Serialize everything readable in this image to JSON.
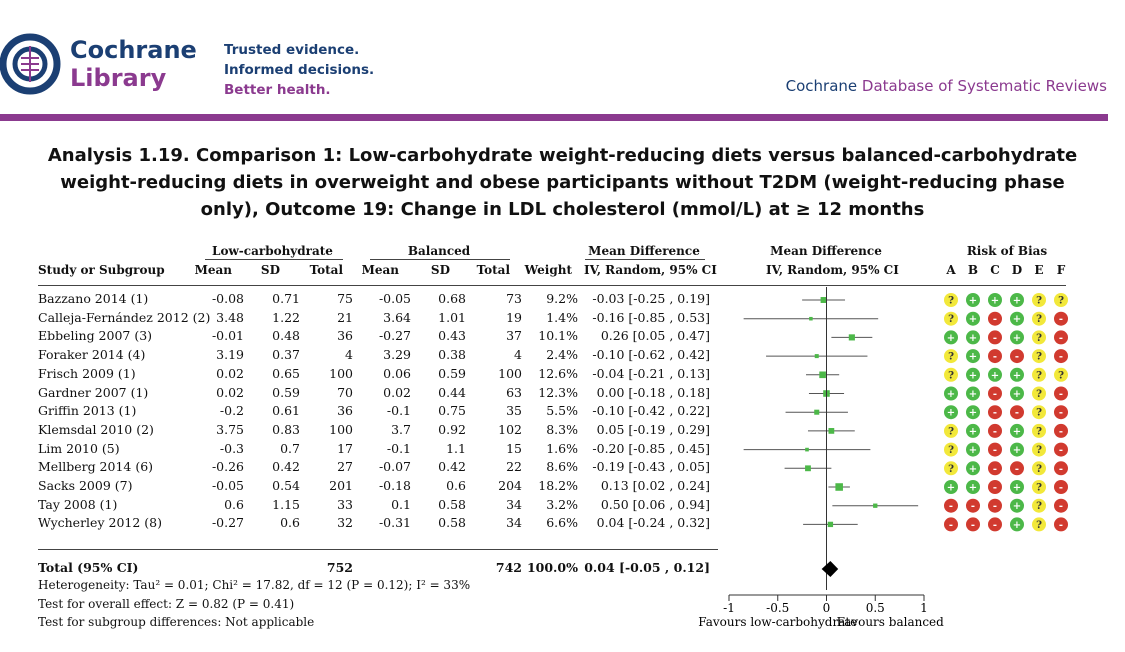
{
  "header": {
    "brand_line1": "Cochrane",
    "brand_line2": "Library",
    "tagline": [
      "Trusted evidence.",
      "Informed decisions.",
      "Better health."
    ],
    "db_title_prefix": "Cochrane",
    "db_title_rest": "Database of Systematic Reviews",
    "colors": {
      "navy": "#1b3f73",
      "purple": "#8b3a8f"
    }
  },
  "analysis_title": "Analysis 1.19.   Comparison 1: Low-carbohydrate weight-reducing diets versus balanced-carbohydrate weight-reducing diets in overweight and obese participants without T2DM (weight-reducing phase only), Outcome 19: Change in LDL cholesterol (mmol/L) at ≥ 12 months",
  "table": {
    "group_headers": {
      "low_carb": "Low-carbohydrate",
      "balanced": "Balanced",
      "md": "Mean Difference",
      "md_plot": "Mean Difference",
      "rob": "Risk of Bias"
    },
    "col_headers": {
      "study": "Study or Subgroup",
      "mean1": "Mean",
      "sd1": "SD",
      "total1": "Total",
      "mean2": "Mean",
      "sd2": "SD",
      "total2": "Total",
      "weight": "Weight",
      "md_ci": "IV, Random, 95% CI",
      "plot_ci": "IV, Random, 95% CI",
      "rob_letters": [
        "A",
        "B",
        "C",
        "D",
        "E",
        "F"
      ]
    },
    "footer": {
      "total_label": "Total (95% CI)",
      "total1": "752",
      "total2": "742",
      "weight": "100.0%",
      "md_ci": "0.04 [-0.05 , 0.12]",
      "heterogeneity": "Heterogeneity: Tau² = 0.01; Chi² = 17.82, df = 12 (P = 0.12); I² = 33%",
      "overall_effect": "Test for overall effect: Z = 0.82 (P = 0.41)",
      "subgroup_diff": "Test for subgroup differences: Not applicable"
    }
  },
  "risk_colors": {
    "low": "#4cb848",
    "unclear": "#f2e83a",
    "high": "#d13a2f"
  },
  "chart_data": {
    "type": "forest",
    "title": "Mean Difference IV, Random, 95% CI",
    "xlim": [
      -1,
      1
    ],
    "ticks": [
      -1,
      -0.5,
      0,
      0.5,
      1
    ],
    "tick_labels": [
      "-1",
      "-0.5",
      "0",
      "0.5",
      "1"
    ],
    "xlabel_left": "Favours low-carbohydrate",
    "xlabel_right": "Favours balanced",
    "studies": [
      {
        "study": "Bazzano 2014 (1)",
        "m1": "-0.08",
        "sd1": "0.71",
        "n1": "75",
        "m2": "-0.05",
        "sd2": "0.68",
        "n2": "73",
        "weight": "9.2%",
        "ci_text": "-0.03 [-0.25 , 0.19]",
        "md": -0.03,
        "lo": -0.25,
        "hi": 0.19,
        "w": 9.2,
        "rob": [
          "?",
          "+",
          "+",
          "+",
          "?",
          "?"
        ]
      },
      {
        "study": "Calleja-Fernández 2012 (2)",
        "m1": "3.48",
        "sd1": "1.22",
        "n1": "21",
        "m2": "3.64",
        "sd2": "1.01",
        "n2": "19",
        "weight": "1.4%",
        "ci_text": "-0.16 [-0.85 , 0.53]",
        "md": -0.16,
        "lo": -0.85,
        "hi": 0.53,
        "w": 1.4,
        "rob": [
          "?",
          "+",
          "-",
          "+",
          "?",
          "-"
        ]
      },
      {
        "study": "Ebbeling 2007 (3)",
        "m1": "-0.01",
        "sd1": "0.48",
        "n1": "36",
        "m2": "-0.27",
        "sd2": "0.43",
        "n2": "37",
        "weight": "10.1%",
        "ci_text": "0.26 [0.05 , 0.47]",
        "md": 0.26,
        "lo": 0.05,
        "hi": 0.47,
        "w": 10.1,
        "rob": [
          "+",
          "+",
          "-",
          "+",
          "?",
          "-"
        ]
      },
      {
        "study": "Foraker 2014 (4)",
        "m1": "3.19",
        "sd1": "0.37",
        "n1": "4",
        "m2": "3.29",
        "sd2": "0.38",
        "n2": "4",
        "weight": "2.4%",
        "ci_text": "-0.10 [-0.62 , 0.42]",
        "md": -0.1,
        "lo": -0.62,
        "hi": 0.42,
        "w": 2.4,
        "rob": [
          "?",
          "+",
          "-",
          "-",
          "?",
          "-"
        ]
      },
      {
        "study": "Frisch 2009 (1)",
        "m1": "0.02",
        "sd1": "0.65",
        "n1": "100",
        "m2": "0.06",
        "sd2": "0.59",
        "n2": "100",
        "weight": "12.6%",
        "ci_text": "-0.04 [-0.21 , 0.13]",
        "md": -0.04,
        "lo": -0.21,
        "hi": 0.13,
        "w": 12.6,
        "rob": [
          "?",
          "+",
          "+",
          "+",
          "?",
          "?"
        ]
      },
      {
        "study": "Gardner 2007 (1)",
        "m1": "0.02",
        "sd1": "0.59",
        "n1": "70",
        "m2": "0.02",
        "sd2": "0.44",
        "n2": "63",
        "weight": "12.3%",
        "ci_text": "0.00 [-0.18 , 0.18]",
        "md": 0.0,
        "lo": -0.18,
        "hi": 0.18,
        "w": 12.3,
        "rob": [
          "+",
          "+",
          "-",
          "+",
          "?",
          "-"
        ]
      },
      {
        "study": "Griffin 2013 (1)",
        "m1": "-0.2",
        "sd1": "0.61",
        "n1": "36",
        "m2": "-0.1",
        "sd2": "0.75",
        "n2": "35",
        "weight": "5.5%",
        "ci_text": "-0.10 [-0.42 , 0.22]",
        "md": -0.1,
        "lo": -0.42,
        "hi": 0.22,
        "w": 5.5,
        "rob": [
          "+",
          "+",
          "-",
          "-",
          "?",
          "-"
        ]
      },
      {
        "study": "Klemsdal 2010 (2)",
        "m1": "3.75",
        "sd1": "0.83",
        "n1": "100",
        "m2": "3.7",
        "sd2": "0.92",
        "n2": "102",
        "weight": "8.3%",
        "ci_text": "0.05 [-0.19 , 0.29]",
        "md": 0.05,
        "lo": -0.19,
        "hi": 0.29,
        "w": 8.3,
        "rob": [
          "?",
          "+",
          "-",
          "+",
          "?",
          "-"
        ]
      },
      {
        "study": "Lim 2010 (5)",
        "m1": "-0.3",
        "sd1": "0.7",
        "n1": "17",
        "m2": "-0.1",
        "sd2": "1.1",
        "n2": "15",
        "weight": "1.6%",
        "ci_text": "-0.20 [-0.85 , 0.45]",
        "md": -0.2,
        "lo": -0.85,
        "hi": 0.45,
        "w": 1.6,
        "rob": [
          "?",
          "+",
          "-",
          "+",
          "?",
          "-"
        ]
      },
      {
        "study": "Mellberg 2014 (6)",
        "m1": "-0.26",
        "sd1": "0.42",
        "n1": "27",
        "m2": "-0.07",
        "sd2": "0.42",
        "n2": "22",
        "weight": "8.6%",
        "ci_text": "-0.19 [-0.43 , 0.05]",
        "md": -0.19,
        "lo": -0.43,
        "hi": 0.05,
        "w": 8.6,
        "rob": [
          "?",
          "+",
          "-",
          "-",
          "?",
          "-"
        ]
      },
      {
        "study": "Sacks 2009 (7)",
        "m1": "-0.05",
        "sd1": "0.54",
        "n1": "201",
        "m2": "-0.18",
        "sd2": "0.6",
        "n2": "204",
        "weight": "18.2%",
        "ci_text": "0.13 [0.02 , 0.24]",
        "md": 0.13,
        "lo": 0.02,
        "hi": 0.24,
        "w": 18.2,
        "rob": [
          "+",
          "+",
          "-",
          "+",
          "?",
          "-"
        ]
      },
      {
        "study": "Tay 2008 (1)",
        "m1": "0.6",
        "sd1": "1.15",
        "n1": "33",
        "m2": "0.1",
        "sd2": "0.58",
        "n2": "34",
        "weight": "3.2%",
        "ci_text": "0.50 [0.06 , 0.94]",
        "md": 0.5,
        "lo": 0.06,
        "hi": 0.94,
        "w": 3.2,
        "rob": [
          "-",
          "-",
          "-",
          "+",
          "?",
          "-"
        ]
      },
      {
        "study": "Wycherley 2012 (8)",
        "m1": "-0.27",
        "sd1": "0.6",
        "n1": "32",
        "m2": "-0.31",
        "sd2": "0.58",
        "n2": "34",
        "weight": "6.6%",
        "ci_text": "0.04 [-0.24 , 0.32]",
        "md": 0.04,
        "lo": -0.24,
        "hi": 0.32,
        "w": 6.6,
        "rob": [
          "-",
          "-",
          "-",
          "+",
          "?",
          "-"
        ]
      }
    ],
    "pooled": {
      "md": 0.04,
      "lo": -0.05,
      "hi": 0.12
    }
  }
}
